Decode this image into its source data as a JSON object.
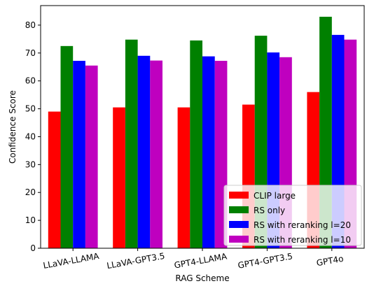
{
  "chart_data": {
    "type": "bar",
    "title": "",
    "xlabel": "RAG Scheme",
    "ylabel": "Confidence Score",
    "ylim": [
      0,
      87
    ],
    "yticks": [
      0,
      10,
      20,
      30,
      40,
      50,
      60,
      70,
      80
    ],
    "grid": false,
    "legend_position": "bottom-right",
    "categories": [
      "LLaVA-LLAMA",
      "LLaVA-GPT3.5",
      "GPT4-LLAMA",
      "GPT4-GPT3.5",
      "GPT4o"
    ],
    "series": [
      {
        "name": "CLIP large",
        "color": "#ff0000",
        "values": [
          49,
          50.5,
          50.5,
          51.5,
          56
        ]
      },
      {
        "name": "RS only",
        "color": "#008000",
        "values": [
          72.5,
          74.8,
          74.5,
          76.2,
          83
        ]
      },
      {
        "name": "RS with reranking l=20",
        "color": "#0000ff",
        "values": [
          67.2,
          69,
          68.8,
          70.2,
          76.5
        ]
      },
      {
        "name": "RS with reranking l=10",
        "color": "#bf00bf",
        "values": [
          65.5,
          67.3,
          67.2,
          68.5,
          74.8
        ]
      }
    ]
  }
}
